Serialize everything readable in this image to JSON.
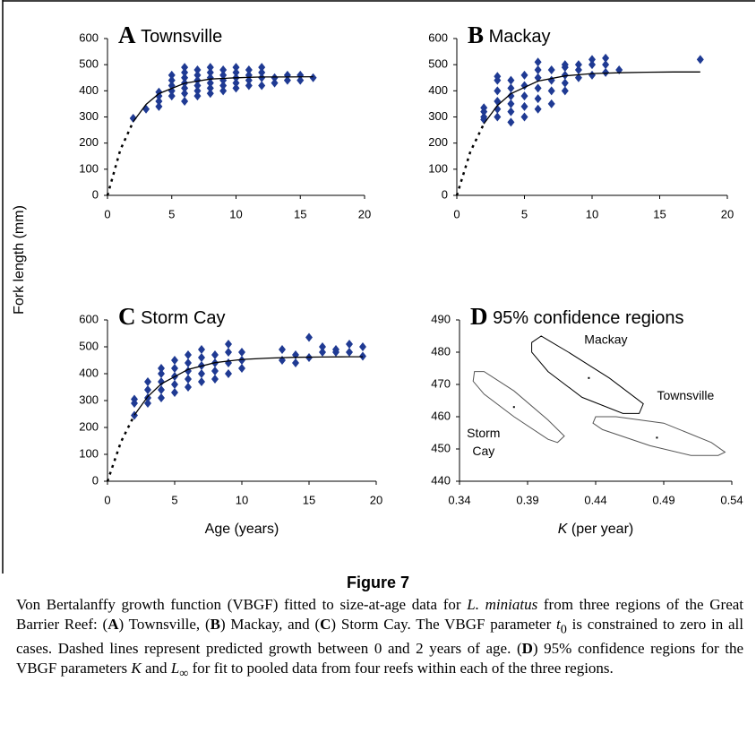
{
  "ylabel": "Fork length (mm)",
  "figure_label": "Figure 7",
  "caption": [
    "Von Bertalanffy growth function (VBGF) fitted to size-at-age data for ",
    "L. miniatus",
    " from three regions of the Great Barrier Reef: (",
    "A",
    ") Townsville, (",
    "B",
    ") Mackay, and (",
    "C",
    ") Storm Cay. The VBGF parameter ",
    "t",
    "0",
    " is constrained to zero in all cases. Dashed lines represent predicted growth between 0 and 2 years of age. (",
    "D",
    ") 95% confidence regions for the VBGF parameters ",
    "K",
    " and ",
    "L",
    "∞",
    " for fit to pooled data from four reefs within each of the three regions."
  ],
  "chart_data": [
    {
      "type": "scatter",
      "panel": "A",
      "title": "Townsville",
      "xlim": [
        0,
        20
      ],
      "xticks": [
        0,
        5,
        10,
        15,
        20
      ],
      "ylim": [
        0,
        600
      ],
      "yticks": [
        0,
        100,
        200,
        300,
        400,
        500,
        600
      ],
      "series": [
        {
          "kind": "points",
          "color": "#1f3a93",
          "x": [
            2,
            3,
            4,
            4,
            4,
            4,
            5,
            5,
            5,
            5,
            5,
            6,
            6,
            6,
            6,
            6,
            6,
            6,
            7,
            7,
            7,
            7,
            7,
            7,
            8,
            8,
            8,
            8,
            8,
            8,
            9,
            9,
            9,
            9,
            9,
            10,
            10,
            10,
            10,
            10,
            11,
            11,
            11,
            11,
            12,
            12,
            12,
            12,
            13,
            13,
            14,
            14,
            15,
            15,
            16
          ],
          "values": [
            295,
            330,
            340,
            360,
            380,
            395,
            380,
            400,
            420,
            440,
            460,
            360,
            390,
            410,
            430,
            450,
            470,
            490,
            380,
            400,
            420,
            440,
            460,
            480,
            390,
            410,
            430,
            450,
            470,
            490,
            400,
            420,
            440,
            460,
            480,
            410,
            430,
            450,
            470,
            490,
            420,
            440,
            460,
            480,
            420,
            450,
            470,
            490,
            430,
            450,
            440,
            460,
            440,
            460,
            450
          ]
        },
        {
          "kind": "curve",
          "style": "dashed",
          "color": "#000000",
          "x": [
            0,
            1,
            2
          ],
          "values": [
            0,
            174,
            282
          ]
        },
        {
          "kind": "curve",
          "style": "solid",
          "color": "#000000",
          "x": [
            2,
            3,
            4,
            6,
            8,
            10,
            12,
            14,
            16
          ],
          "values": [
            282,
            348,
            389,
            429,
            445,
            450,
            453,
            453,
            454
          ]
        }
      ]
    },
    {
      "type": "scatter",
      "panel": "B",
      "title": "Mackay",
      "xlim": [
        0,
        20
      ],
      "xticks": [
        0,
        5,
        10,
        15,
        20
      ],
      "ylim": [
        0,
        600
      ],
      "yticks": [
        0,
        100,
        200,
        300,
        400,
        500,
        600
      ],
      "series": [
        {
          "kind": "points",
          "color": "#1f3a93",
          "x": [
            2,
            2,
            2,
            2,
            3,
            3,
            3,
            3,
            3,
            3,
            4,
            4,
            4,
            4,
            4,
            4,
            5,
            5,
            5,
            5,
            5,
            6,
            6,
            6,
            6,
            6,
            6,
            7,
            7,
            7,
            7,
            8,
            8,
            8,
            8,
            8,
            9,
            9,
            9,
            10,
            10,
            10,
            11,
            11,
            11,
            12,
            18
          ],
          "values": [
            290,
            300,
            320,
            335,
            300,
            330,
            360,
            400,
            440,
            455,
            280,
            320,
            350,
            380,
            410,
            440,
            300,
            340,
            380,
            420,
            460,
            330,
            370,
            410,
            450,
            480,
            510,
            350,
            400,
            440,
            480,
            400,
            430,
            460,
            490,
            500,
            450,
            480,
            500,
            460,
            500,
            520,
            470,
            500,
            525,
            480,
            520
          ]
        },
        {
          "kind": "curve",
          "style": "dashed",
          "color": "#000000",
          "x": [
            0,
            1,
            2
          ],
          "values": [
            0,
            167,
            274
          ]
        },
        {
          "kind": "curve",
          "style": "solid",
          "color": "#000000",
          "x": [
            2,
            3,
            4,
            6,
            8,
            10,
            12,
            14,
            16,
            18
          ],
          "values": [
            274,
            344,
            389,
            437,
            457,
            466,
            469,
            471,
            472,
            472
          ]
        }
      ]
    },
    {
      "type": "scatter",
      "panel": "C",
      "title": "Storm Cay",
      "xlabel": "Age (years)",
      "xlim": [
        0,
        20
      ],
      "xticks": [
        0,
        5,
        10,
        15,
        20
      ],
      "ylim": [
        0,
        600
      ],
      "yticks": [
        0,
        100,
        200,
        300,
        400,
        500,
        600
      ],
      "series": [
        {
          "kind": "points",
          "color": "#1f3a93",
          "x": [
            2,
            2,
            2,
            3,
            3,
            3,
            3,
            4,
            4,
            4,
            4,
            4,
            5,
            5,
            5,
            5,
            5,
            6,
            6,
            6,
            6,
            6,
            7,
            7,
            7,
            7,
            7,
            8,
            8,
            8,
            8,
            9,
            9,
            9,
            9,
            10,
            10,
            10,
            13,
            13,
            14,
            14,
            15,
            15,
            16,
            16,
            17,
            17,
            18,
            18,
            19,
            19
          ],
          "values": [
            245,
            290,
            305,
            290,
            310,
            340,
            370,
            310,
            340,
            370,
            400,
            420,
            330,
            360,
            390,
            420,
            450,
            350,
            380,
            410,
            440,
            470,
            370,
            400,
            430,
            460,
            490,
            380,
            410,
            440,
            470,
            400,
            440,
            480,
            510,
            420,
            450,
            480,
            450,
            490,
            440,
            470,
            460,
            535,
            480,
            500,
            480,
            490,
            480,
            510,
            465,
            500
          ]
        },
        {
          "kind": "curve",
          "style": "dashed",
          "color": "#000000",
          "x": [
            0,
            1,
            2
          ],
          "values": [
            0,
            146,
            246
          ]
        },
        {
          "kind": "curve",
          "style": "solid",
          "color": "#000000",
          "x": [
            2,
            3,
            4,
            6,
            8,
            10,
            12,
            14,
            16,
            18,
            19
          ],
          "values": [
            246,
            315,
            362,
            416,
            441,
            453,
            458,
            461,
            462,
            463,
            463
          ]
        }
      ]
    },
    {
      "type": "region",
      "panel": "D",
      "title": "95% confidence regions",
      "xlabel_parts": [
        "K",
        " (per year)"
      ],
      "xlim": [
        0.34,
        0.54
      ],
      "xticks": [
        0.34,
        0.39,
        0.44,
        0.49,
        0.54
      ],
      "ylim": [
        440,
        490
      ],
      "yticks": [
        440,
        450,
        460,
        470,
        480,
        490
      ],
      "series": [
        {
          "name": "Mackay",
          "color": "#000000",
          "center_x": 0.435,
          "center_y": 472,
          "x": [
            0.393,
            0.4,
            0.42,
            0.45,
            0.475,
            0.472,
            0.46,
            0.43,
            0.405,
            0.393
          ],
          "values": [
            483,
            485,
            480,
            472,
            464,
            461,
            461,
            466,
            474,
            480
          ]
        },
        {
          "name": "Storm Cay",
          "color": "#555555",
          "center_x": 0.38,
          "center_y": 463,
          "x": [
            0.351,
            0.358,
            0.38,
            0.405,
            0.417,
            0.412,
            0.405,
            0.38,
            0.358,
            0.35
          ],
          "values": [
            474,
            474,
            468,
            459,
            454,
            452,
            453,
            460,
            467,
            471
          ]
        },
        {
          "name": "Townsville",
          "color": "#555555",
          "center_x": 0.485,
          "center_y": 453.5,
          "x": [
            0.44,
            0.455,
            0.49,
            0.525,
            0.535,
            0.53,
            0.51,
            0.48,
            0.445,
            0.438
          ],
          "values": [
            460,
            460,
            458,
            452,
            449,
            448,
            448,
            451,
            456,
            458
          ]
        }
      ]
    }
  ]
}
